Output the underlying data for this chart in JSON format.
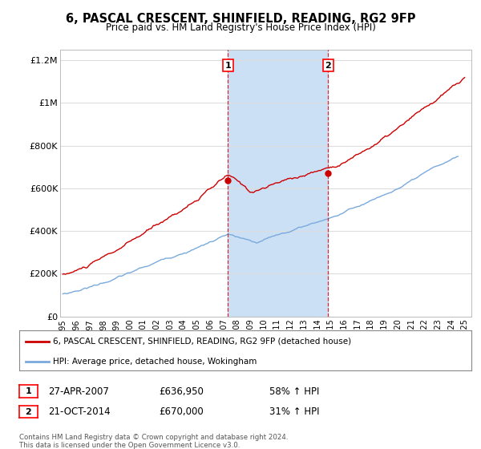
{
  "title": "6, PASCAL CRESCENT, SHINFIELD, READING, RG2 9FP",
  "subtitle": "Price paid vs. HM Land Registry's House Price Index (HPI)",
  "x_start": 1994.8,
  "x_end": 2025.5,
  "y_min": 0,
  "y_max": 1250000,
  "yticks": [
    0,
    200000,
    400000,
    600000,
    800000,
    1000000,
    1200000
  ],
  "ytick_labels": [
    "£0",
    "£200K",
    "£400K",
    "£600K",
    "£800K",
    "£1M",
    "£1.2M"
  ],
  "xtick_years": [
    1995,
    1996,
    1997,
    1998,
    1999,
    2000,
    2001,
    2002,
    2003,
    2004,
    2005,
    2006,
    2007,
    2008,
    2009,
    2010,
    2011,
    2012,
    2013,
    2014,
    2015,
    2016,
    2017,
    2018,
    2019,
    2020,
    2021,
    2022,
    2023,
    2024,
    2025
  ],
  "sale1_x": 2007.32,
  "sale1_y": 636950,
  "sale1_label": "1",
  "sale1_date": "27-APR-2007",
  "sale1_price": "£636,950",
  "sale1_hpi": "58% ↑ HPI",
  "sale2_x": 2014.81,
  "sale2_y": 670000,
  "sale2_label": "2",
  "sale2_date": "21-OCT-2014",
  "sale2_price": "£670,000",
  "sale2_hpi": "31% ↑ HPI",
  "shaded_region_color": "#cce0f5",
  "red_line_color": "#cc0000",
  "blue_line_color": "#7aaadd",
  "legend_red_label": "6, PASCAL CRESCENT, SHINFIELD, READING, RG2 9FP (detached house)",
  "legend_blue_label": "HPI: Average price, detached house, Wokingham",
  "footer": "Contains HM Land Registry data © Crown copyright and database right 2024.\nThis data is licensed under the Open Government Licence v3.0.",
  "background_color": "#ffffff",
  "grid_color": "#dddddd"
}
